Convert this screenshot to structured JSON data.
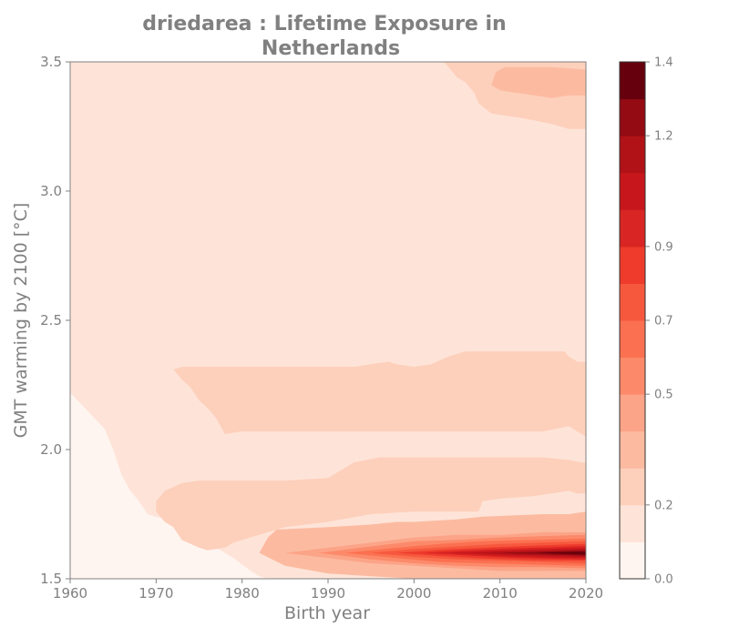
{
  "chart_data": {
    "type": "heatmap",
    "subtype": "filled-contour",
    "title_lines": [
      "driedarea : Lifetime Exposure in",
      "Netherlands"
    ],
    "xlabel": "Birth year",
    "ylabel": "GMT warming by 2100 [°C]",
    "xlim": [
      1960,
      2020
    ],
    "ylim": [
      1.5,
      3.5
    ],
    "x_ticks": [
      "1960",
      "1970",
      "1980",
      "1990",
      "2000",
      "2010",
      "2020"
    ],
    "y_ticks": [
      "1.5",
      "2.0",
      "2.5",
      "3.0",
      "3.5"
    ],
    "colorbar": {
      "levels": [
        0.0,
        0.1,
        0.2,
        0.3,
        0.4,
        0.5,
        0.6,
        0.7,
        0.8,
        0.9,
        1.0,
        1.1,
        1.2,
        1.3,
        1.4
      ],
      "ticks": [
        "0.0",
        "0.2",
        "0.5",
        "0.7",
        "0.9",
        "1.2",
        "1.4"
      ],
      "tick_values": [
        0.0,
        0.2,
        0.5,
        0.7,
        0.9,
        1.2,
        1.4
      ],
      "colors": [
        "#fff5f0",
        "#fee4d8",
        "#fdd0bc",
        "#fcbba1",
        "#fca488",
        "#fc8a6a",
        "#fb7050",
        "#f6583e",
        "#ee3b2c",
        "#d92523",
        "#c8171c",
        "#b11218",
        "#940b13",
        "#67000d"
      ],
      "colormap": "Reds"
    },
    "contours": [
      {
        "level": 0.0,
        "points": [
          [
            1960,
            1.5
          ],
          [
            2020,
            1.5
          ],
          [
            2020,
            3.5
          ],
          [
            1960,
            3.5
          ]
        ]
      },
      {
        "level": 0.1,
        "points": [
          [
            1960,
            2.22
          ],
          [
            1962,
            2.15
          ],
          [
            1964,
            2.08
          ],
          [
            1965,
            2.0
          ],
          [
            1966,
            1.9
          ],
          [
            1967,
            1.84
          ],
          [
            1968,
            1.8
          ],
          [
            1969,
            1.75
          ],
          [
            1971,
            1.73
          ],
          [
            1972,
            1.72
          ],
          [
            1973,
            1.68
          ],
          [
            1974,
            1.65
          ],
          [
            1975,
            1.63
          ],
          [
            1977,
            1.62
          ],
          [
            1979,
            1.58
          ],
          [
            1981,
            1.53
          ],
          [
            1982,
            1.51
          ],
          [
            1983,
            1.5
          ],
          [
            2020,
            1.5
          ],
          [
            2020,
            3.5
          ],
          [
            1960,
            3.5
          ]
        ]
      },
      {
        "level": 0.2,
        "points": [
          [
            1983,
            1.5
          ],
          [
            2020,
            1.5
          ],
          [
            2020,
            1.83
          ],
          [
            2019,
            1.83
          ],
          [
            2018,
            1.84
          ],
          [
            2016,
            1.83
          ],
          [
            2014,
            1.82
          ],
          [
            2010,
            1.81
          ],
          [
            2008,
            1.8
          ],
          [
            2007.5,
            1.76
          ],
          [
            2005,
            1.76
          ],
          [
            2000,
            1.76
          ],
          [
            1995,
            1.75
          ],
          [
            1990,
            1.72
          ],
          [
            1985,
            1.7
          ],
          [
            1983,
            1.68
          ],
          [
            1981,
            1.66
          ],
          [
            1979,
            1.64
          ],
          [
            1978,
            1.62
          ],
          [
            1976,
            1.61
          ],
          [
            1975,
            1.62
          ],
          [
            1973,
            1.65
          ],
          [
            1972,
            1.7
          ],
          [
            1971,
            1.72
          ],
          [
            1970,
            1.76
          ],
          [
            1970,
            1.8
          ],
          [
            1971,
            1.84
          ],
          [
            1973,
            1.87
          ],
          [
            1975,
            1.88
          ],
          [
            1980,
            1.88
          ],
          [
            1985,
            1.88
          ],
          [
            1990,
            1.89
          ],
          [
            1993,
            1.95
          ],
          [
            1996,
            1.97
          ],
          [
            2000,
            1.97
          ],
          [
            2005,
            1.97
          ],
          [
            2010,
            1.97
          ],
          [
            2015,
            1.97
          ],
          [
            2018,
            1.96
          ],
          [
            2019.5,
            1.95
          ],
          [
            2020,
            1.95
          ],
          [
            2020,
            2.05
          ],
          [
            2018,
            2.09
          ],
          [
            2015,
            2.07
          ],
          [
            2010,
            2.07
          ],
          [
            2000,
            2.07
          ],
          [
            1990,
            2.07
          ],
          [
            1980,
            2.07
          ],
          [
            1978,
            2.06
          ],
          [
            1977,
            2.12
          ],
          [
            1976,
            2.16
          ],
          [
            1975,
            2.19
          ],
          [
            1974,
            2.24
          ],
          [
            1973,
            2.27
          ],
          [
            1972,
            2.31
          ],
          [
            1973,
            2.32
          ],
          [
            1975,
            2.32
          ],
          [
            1980,
            2.32
          ],
          [
            1985,
            2.32
          ],
          [
            1990,
            2.32
          ],
          [
            1993,
            2.32
          ],
          [
            1995,
            2.33
          ],
          [
            1997,
            2.34
          ],
          [
            1998,
            2.33
          ],
          [
            2000,
            2.32
          ],
          [
            2002,
            2.33
          ],
          [
            2004,
            2.36
          ],
          [
            2006,
            2.38
          ],
          [
            2010,
            2.38
          ],
          [
            2015,
            2.38
          ],
          [
            2017.5,
            2.38
          ],
          [
            2018,
            2.36
          ],
          [
            2019,
            2.34
          ],
          [
            2020,
            2.34
          ],
          [
            2020,
            3.24
          ],
          [
            2018,
            3.24
          ],
          [
            2016,
            3.26
          ],
          [
            2013,
            3.28
          ],
          [
            2011,
            3.29
          ],
          [
            2009,
            3.3
          ],
          [
            2007.5,
            3.34
          ],
          [
            2007,
            3.38
          ],
          [
            2006,
            3.42
          ],
          [
            2005,
            3.44
          ],
          [
            2004.5,
            3.46
          ],
          [
            2004,
            3.48
          ],
          [
            2003.5,
            3.5
          ],
          [
            2020,
            3.5
          ],
          [
            2020,
            1.5
          ]
        ]
      },
      {
        "level": 0.3,
        "points": [
          [
            2009,
            3.41
          ],
          [
            2009.5,
            3.46
          ],
          [
            2010.5,
            3.48
          ],
          [
            2013,
            3.48
          ],
          [
            2016,
            3.48
          ],
          [
            2020,
            3.47
          ],
          [
            2020,
            3.37
          ],
          [
            2018,
            3.37
          ],
          [
            2016,
            3.36
          ],
          [
            2014,
            3.37
          ],
          [
            2012,
            3.38
          ],
          [
            2010,
            3.39
          ],
          [
            2009,
            3.41
          ]
        ]
      },
      {
        "level": 0.3,
        "points": [
          [
            1982,
            1.6
          ],
          [
            1983,
            1.66
          ],
          [
            1984,
            1.69
          ],
          [
            1990,
            1.7
          ],
          [
            1995,
            1.71
          ],
          [
            1998,
            1.72
          ],
          [
            2000,
            1.72
          ],
          [
            2005,
            1.73
          ],
          [
            2008,
            1.74
          ],
          [
            2015,
            1.75
          ],
          [
            2018,
            1.75
          ],
          [
            2020,
            1.76
          ],
          [
            2020,
            1.5
          ],
          [
            2000,
            1.5
          ],
          [
            1990,
            1.52
          ],
          [
            1985,
            1.55
          ],
          [
            1982,
            1.6
          ]
        ]
      },
      {
        "level": 0.4,
        "points": [
          [
            1985,
            1.6
          ],
          [
            1990,
            1.62
          ],
          [
            1995,
            1.64
          ],
          [
            2000,
            1.66
          ],
          [
            2005,
            1.67
          ],
          [
            2010,
            1.67
          ],
          [
            2015,
            1.68
          ],
          [
            2020,
            1.68
          ],
          [
            2020,
            1.53
          ],
          [
            2015,
            1.53
          ],
          [
            2010,
            1.53
          ],
          [
            2005,
            1.54
          ],
          [
            2000,
            1.55
          ],
          [
            1995,
            1.56
          ],
          [
            1990,
            1.58
          ],
          [
            1985,
            1.6
          ]
        ]
      },
      {
        "level": 0.5,
        "points": [
          [
            1989,
            1.6
          ],
          [
            1995,
            1.625
          ],
          [
            2000,
            1.645
          ],
          [
            2005,
            1.65
          ],
          [
            2010,
            1.66
          ],
          [
            2015,
            1.665
          ],
          [
            2020,
            1.67
          ],
          [
            2020,
            1.54
          ],
          [
            2015,
            1.545
          ],
          [
            2010,
            1.545
          ],
          [
            2005,
            1.55
          ],
          [
            2000,
            1.56
          ],
          [
            1995,
            1.575
          ],
          [
            1989,
            1.6
          ]
        ]
      },
      {
        "level": 0.6,
        "points": [
          [
            1992,
            1.6
          ],
          [
            1998,
            1.62
          ],
          [
            2003,
            1.635
          ],
          [
            2008,
            1.645
          ],
          [
            2014,
            1.65
          ],
          [
            2020,
            1.655
          ],
          [
            2020,
            1.55
          ],
          [
            2014,
            1.555
          ],
          [
            2008,
            1.56
          ],
          [
            2003,
            1.565
          ],
          [
            1998,
            1.58
          ],
          [
            1992,
            1.6
          ]
        ]
      },
      {
        "level": 0.7,
        "points": [
          [
            1995,
            1.6
          ],
          [
            2000,
            1.615
          ],
          [
            2005,
            1.625
          ],
          [
            2010,
            1.635
          ],
          [
            2015,
            1.64
          ],
          [
            2020,
            1.645
          ],
          [
            2020,
            1.56
          ],
          [
            2015,
            1.565
          ],
          [
            2010,
            1.57
          ],
          [
            2005,
            1.575
          ],
          [
            2000,
            1.585
          ],
          [
            1995,
            1.6
          ]
        ]
      },
      {
        "level": 0.8,
        "points": [
          [
            1998,
            1.6
          ],
          [
            2003,
            1.612
          ],
          [
            2008,
            1.62
          ],
          [
            2014,
            1.628
          ],
          [
            2020,
            1.635
          ],
          [
            2020,
            1.57
          ],
          [
            2014,
            1.572
          ],
          [
            2008,
            1.578
          ],
          [
            2003,
            1.588
          ],
          [
            1998,
            1.6
          ]
        ]
      },
      {
        "level": 0.9,
        "points": [
          [
            2001,
            1.6
          ],
          [
            2006,
            1.61
          ],
          [
            2011,
            1.617
          ],
          [
            2016,
            1.622
          ],
          [
            2020,
            1.627
          ],
          [
            2020,
            1.575
          ],
          [
            2016,
            1.577
          ],
          [
            2011,
            1.582
          ],
          [
            2006,
            1.59
          ],
          [
            2001,
            1.6
          ]
        ]
      },
      {
        "level": 1.0,
        "points": [
          [
            2004,
            1.6
          ],
          [
            2009,
            1.608
          ],
          [
            2014,
            1.614
          ],
          [
            2020,
            1.62
          ],
          [
            2020,
            1.58
          ],
          [
            2014,
            1.584
          ],
          [
            2009,
            1.59
          ],
          [
            2004,
            1.6
          ]
        ]
      },
      {
        "level": 1.1,
        "points": [
          [
            2007,
            1.6
          ],
          [
            2012,
            1.606
          ],
          [
            2017,
            1.611
          ],
          [
            2020,
            1.614
          ],
          [
            2020,
            1.585
          ],
          [
            2017,
            1.588
          ],
          [
            2012,
            1.593
          ],
          [
            2007,
            1.6
          ]
        ]
      },
      {
        "level": 1.2,
        "points": [
          [
            2010,
            1.6
          ],
          [
            2015,
            1.605
          ],
          [
            2020,
            1.609
          ],
          [
            2020,
            1.589
          ],
          [
            2015,
            1.594
          ],
          [
            2010,
            1.6
          ]
        ]
      },
      {
        "level": 1.3,
        "points": [
          [
            2014,
            1.6
          ],
          [
            2017,
            1.603
          ],
          [
            2020,
            1.605
          ],
          [
            2020,
            1.593
          ],
          [
            2017,
            1.597
          ],
          [
            2014,
            1.6
          ]
        ]
      }
    ]
  }
}
